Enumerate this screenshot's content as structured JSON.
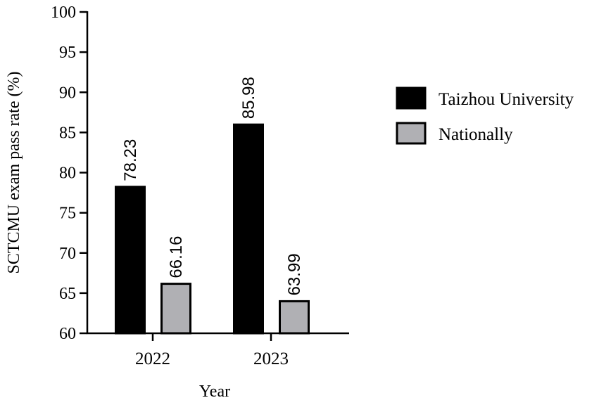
{
  "chart_data": {
    "type": "bar",
    "title": "",
    "xlabel": "Year",
    "ylabel": "SCTCMU exam pass rate (%)",
    "categories": [
      "2022",
      "2023"
    ],
    "series": [
      {
        "name": "Taizhou University",
        "values": [
          78.23,
          85.98
        ],
        "value_labels": [
          "78.23",
          "85.98"
        ],
        "color": "#000000"
      },
      {
        "name": "Nationally",
        "values": [
          66.16,
          63.99
        ],
        "value_labels": [
          "66.16",
          "63.99"
        ],
        "color": "#b0b0b4"
      }
    ],
    "ylim": [
      60,
      100
    ],
    "yticks": [
      "60",
      "65",
      "70",
      "75",
      "80",
      "85",
      "90",
      "95",
      "100"
    ],
    "grid": false,
    "legend_position": "right"
  }
}
